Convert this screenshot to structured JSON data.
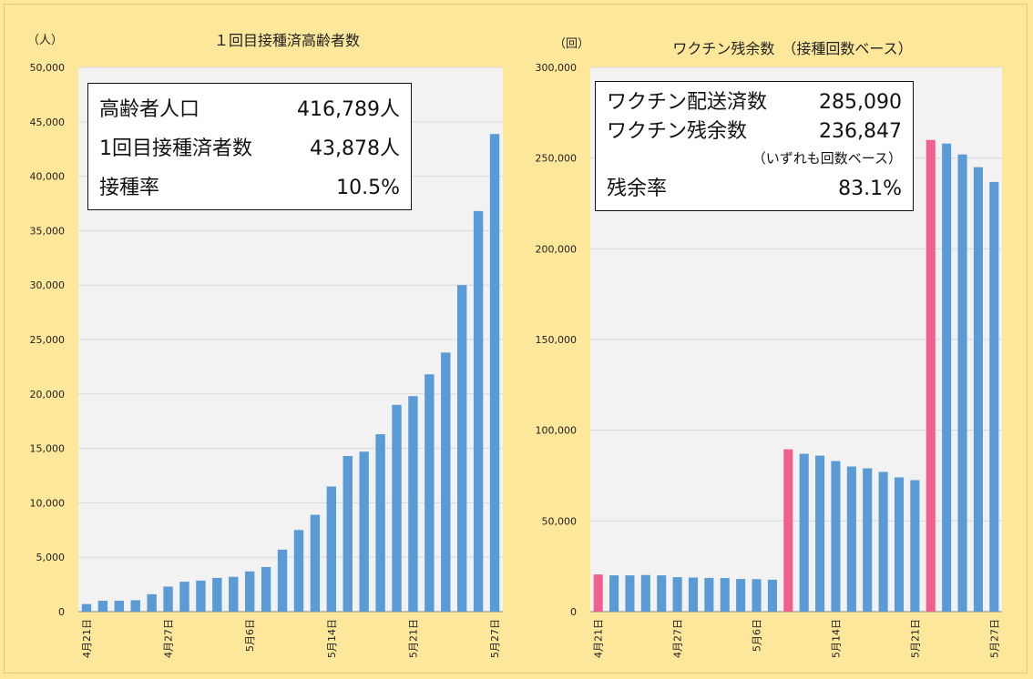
{
  "colors": {
    "background": "#fde79a",
    "plot": "#f2f2f2",
    "bar": "#5b9bd5",
    "highlight": "#f0608e"
  },
  "chart_data": [
    {
      "type": "bar",
      "title": "１回目接種済高齢者数",
      "unit_label": "（人）",
      "ylim": [
        0,
        50000
      ],
      "y_ticks": [
        "0",
        "5,000",
        "10,000",
        "15,000",
        "20,000",
        "25,000",
        "30,000",
        "35,000",
        "40,000",
        "45,000",
        "50,000"
      ],
      "x_tick_labels": [
        "4月21日",
        "4月27日",
        "5月6日",
        "5月14日",
        "5月21日",
        "5月27日"
      ],
      "x_tick_positions": [
        0,
        5,
        10,
        15,
        20,
        25
      ],
      "values": [
        700,
        1000,
        1000,
        1050,
        1600,
        2300,
        2750,
        2850,
        3100,
        3200,
        3700,
        4100,
        5700,
        7500,
        8900,
        11500,
        14300,
        14700,
        16300,
        19000,
        19800,
        21800,
        23800,
        30000,
        36800,
        43878
      ],
      "info_box": {
        "rows": [
          {
            "label": "高齢者人口",
            "value": "416,789人"
          },
          {
            "label": "1回目接種済者数",
            "value": "43,878人"
          },
          {
            "label": "接種率",
            "value": "10.5%"
          }
        ]
      }
    },
    {
      "type": "bar",
      "title": "ワクチン残余数　（接種回数ベース）",
      "unit_label": "（回）",
      "ylim": [
        0,
        300000
      ],
      "y_ticks": [
        "0",
        "50,000",
        "100,000",
        "150,000",
        "200,000",
        "250,000",
        "300,000"
      ],
      "x_tick_labels": [
        "4月21日",
        "4月27日",
        "5月6日",
        "5月14日",
        "5月21日",
        "5月27日"
      ],
      "x_tick_positions": [
        0,
        5,
        10,
        15,
        20,
        25
      ],
      "values": [
        20500,
        20000,
        20000,
        20200,
        20000,
        19000,
        18800,
        18600,
        18500,
        18000,
        17900,
        17600,
        89500,
        87000,
        86000,
        83000,
        80000,
        79000,
        77000,
        74000,
        72500,
        260000,
        258000,
        252000,
        245000,
        236847
      ],
      "highlight_indices": [
        0,
        12,
        21
      ],
      "info_box": {
        "rows": [
          {
            "label": "ワクチン配送済数",
            "value": "285,090"
          },
          {
            "label": "ワクチン残余数",
            "value": "236,847"
          },
          {
            "label": "残余率",
            "value": "83.1%"
          }
        ],
        "note": "（いずれも回数ベース）"
      }
    }
  ]
}
